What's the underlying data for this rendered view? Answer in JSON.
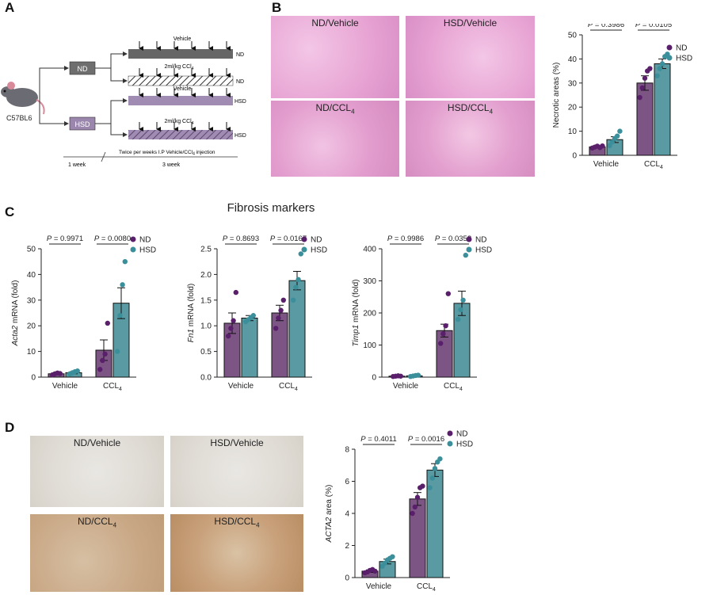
{
  "panels": {
    "a": "A",
    "b": "B",
    "c": "C",
    "d": "D"
  },
  "schematic": {
    "mouse_label": "C57BL6",
    "nd_box": "ND",
    "hsd_box": "HSD",
    "bars": [
      {
        "top": "Vehicle",
        "right": "ND"
      },
      {
        "top": "2ml/kg CCl",
        "sub": "4",
        "right": "ND"
      },
      {
        "top": "Vehicle",
        "right": "HSD"
      },
      {
        "top": "2ml/kg CCl",
        "sub": "4",
        "right": "HSD"
      }
    ],
    "injection_text": "Twice per weeks I.P Vehicle/CCl",
    "injection_sub": "4",
    "injection_tail": " injection",
    "week1": "1 week",
    "week3": "3 week"
  },
  "he_images": [
    {
      "label": "ND/Vehicle"
    },
    {
      "label": "HSD/Vehicle"
    },
    {
      "label": "ND/CCL",
      "sub": "4"
    },
    {
      "label": "HSD/CCL",
      "sub": "4"
    }
  ],
  "ihc_images": [
    {
      "label": "ND/Vehicle"
    },
    {
      "label": "HSD/Vehicle"
    },
    {
      "label": "ND/CCL",
      "sub": "4"
    },
    {
      "label": "HSD/CCL",
      "sub": "4"
    }
  ],
  "fibrosis_title": "Fibrosis markers",
  "colors": {
    "nd": "#7d5585",
    "hsd": "#5a9aa3",
    "nd_dot": "#5a1f6b",
    "hsd_dot": "#3b8f9a",
    "he": "#e9a7d6",
    "ihc": "#c9b49a"
  },
  "chart_data": [
    {
      "id": "necrotic",
      "type": "bar",
      "categories": [
        "Vehicle",
        "CCL4"
      ],
      "category_labels": [
        {
          "main": "Vehicle"
        },
        {
          "main": "CCL",
          "sub": "4"
        }
      ],
      "ylabel": "Necrotic areas  (%)",
      "ylim": [
        0,
        50
      ],
      "yticks": [
        0,
        10,
        20,
        30,
        40,
        50
      ],
      "series": [
        {
          "name": "ND",
          "values": [
            3.5,
            30
          ],
          "err": [
            0.4,
            3
          ],
          "points": [
            [
              3,
              3.4,
              3.8,
              3.2,
              3.9
            ],
            [
              24,
              28,
              32,
              35,
              36
            ]
          ]
        },
        {
          "name": "HSD",
          "values": [
            6.5,
            38
          ],
          "err": [
            1.2,
            2
          ],
          "points": [
            [
              4,
              5.5,
              7,
              8,
              10
            ],
            [
              33,
              36,
              38,
              41,
              42
            ]
          ]
        }
      ],
      "pvalues": [
        "P = 0.3986",
        "P = 0.0105"
      ]
    },
    {
      "id": "acta2",
      "type": "bar",
      "categories": [
        "Vehicle",
        "CCL4"
      ],
      "category_labels": [
        {
          "main": "Vehicle"
        },
        {
          "main": "CCL",
          "sub": "4"
        }
      ],
      "ylabel_italic": "Acta2",
      "ylabel_rest": " mRNA (fold)",
      "ylim": [
        0,
        50
      ],
      "yticks": [
        0,
        10,
        20,
        30,
        40,
        50
      ],
      "series": [
        {
          "name": "ND",
          "values": [
            1.3,
            10.5
          ],
          "err": [
            0.3,
            4
          ],
          "points": [
            [
              0.9,
              1.3,
              1.6,
              1.4
            ],
            [
              3,
              6.5,
              9,
              21
            ]
          ]
        },
        {
          "name": "HSD",
          "values": [
            1.7,
            28.8
          ],
          "err": [
            0.4,
            6
          ],
          "points": [
            [
              1.3,
              1.7,
              2.1,
              2.4
            ],
            [
              10,
              24,
              36,
              45
            ]
          ]
        }
      ],
      "pvalues": [
        "P = 0.9971",
        "P = 0.0080"
      ]
    },
    {
      "id": "fn1",
      "type": "bar",
      "categories": [
        "Vehicle",
        "CCL4"
      ],
      "category_labels": [
        {
          "main": "Vehicle"
        },
        {
          "main": "CCL",
          "sub": "4"
        }
      ],
      "ylabel_italic": "Fn1",
      "ylabel_rest": " mRNA (fold)",
      "ylim": [
        0,
        2.5
      ],
      "yticks": [
        0.0,
        0.5,
        1.0,
        1.5,
        2.0,
        2.5
      ],
      "series": [
        {
          "name": "ND",
          "values": [
            1.05,
            1.25
          ],
          "err": [
            0.2,
            0.15
          ],
          "points": [
            [
              0.8,
              0.95,
              1.1,
              1.65
            ],
            [
              0.95,
              1.15,
              1.3,
              1.5
            ]
          ]
        },
        {
          "name": "HSD",
          "values": [
            1.15,
            1.88
          ],
          "err": [
            0.05,
            0.18
          ],
          "points": [
            [
              1.08,
              1.12,
              1.16,
              1.2
            ],
            [
              1.5,
              1.75,
              1.9,
              2.4
            ]
          ]
        }
      ],
      "pvalues": [
        "P = 0.8693",
        "P = 0.0167"
      ]
    },
    {
      "id": "timp1",
      "type": "bar",
      "categories": [
        "Vehicle",
        "CCL4"
      ],
      "category_labels": [
        {
          "main": "Vehicle"
        },
        {
          "main": "CCL",
          "sub": "4"
        }
      ],
      "ylabel_italic": "Timp1",
      "ylabel_rest": " mRNA (fold)",
      "ylim": [
        0,
        400
      ],
      "yticks": [
        0,
        100,
        200,
        300,
        400
      ],
      "series": [
        {
          "name": "ND",
          "values": [
            3,
            145
          ],
          "err": [
            1,
            20
          ],
          "points": [
            [
              2,
              3,
              4,
              3
            ],
            [
              105,
              135,
              160,
              260
            ]
          ]
        },
        {
          "name": "HSD",
          "values": [
            4,
            230
          ],
          "err": [
            1.5,
            38
          ],
          "points": [
            [
              2,
              3.5,
              5,
              6
            ],
            [
              180,
              210,
              240,
              380
            ]
          ]
        }
      ],
      "pvalues": [
        "P = 0.9986",
        "P = 0.0358"
      ]
    },
    {
      "id": "acta2area",
      "type": "bar",
      "categories": [
        "Vehicle",
        "CCL4"
      ],
      "category_labels": [
        {
          "main": "Vehicle"
        },
        {
          "main": "CCL",
          "sub": "4"
        }
      ],
      "ylabel_italic": "ACTA2",
      "ylabel_rest": " area (%)",
      "ylim": [
        0,
        8
      ],
      "yticks": [
        0,
        2,
        4,
        6,
        8
      ],
      "series": [
        {
          "name": "ND",
          "values": [
            0.4,
            4.9
          ],
          "err": [
            0.08,
            0.4
          ],
          "points": [
            [
              0.3,
              0.35,
              0.45,
              0.5,
              0.4
            ],
            [
              4.0,
              4.4,
              5.0,
              5.6,
              5.7
            ]
          ]
        },
        {
          "name": "HSD",
          "values": [
            1.0,
            6.7
          ],
          "err": [
            0.15,
            0.4
          ],
          "points": [
            [
              0.7,
              0.9,
              1.1,
              1.2,
              1.3
            ],
            [
              5.6,
              6.2,
              6.8,
              7.2,
              7.4
            ]
          ]
        }
      ],
      "pvalues": [
        "P = 0.4011",
        "P = 0.0016"
      ]
    }
  ]
}
